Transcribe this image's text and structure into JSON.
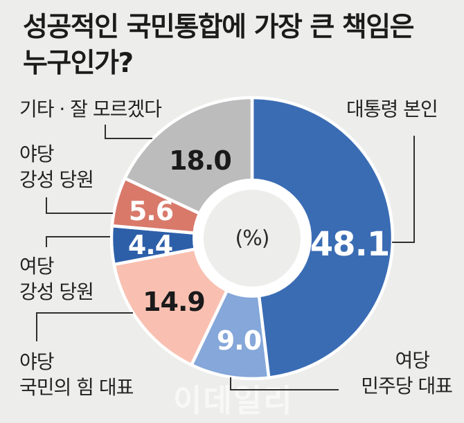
{
  "title": "성공적인 국민통합에 가장 큰 책임은\n누구인가?",
  "center_label": "(%)",
  "watermark": "이데일리",
  "chart_data": {
    "type": "pie",
    "donut": true,
    "title": "성공적인 국민통합에 가장 큰 책임은 누구인가?",
    "unit": "%",
    "start_angle_deg": 0,
    "direction": "clockwise",
    "total": 100.0,
    "segments": [
      {
        "key": "president",
        "label": "대통령 본인",
        "value": 48.1,
        "value_label": "48.1",
        "color": "#3a6cb4",
        "value_color": "#ffffff"
      },
      {
        "key": "ruling-party-leader",
        "label": "여당 민주당 대표",
        "value": 9.0,
        "value_label": "9.0",
        "color": "#85a7d9",
        "value_color": "#ffffff"
      },
      {
        "key": "opposition-party-leader",
        "label": "야당 국민의 힘 대표",
        "value": 14.9,
        "value_label": "14.9",
        "color": "#f9c0b1",
        "value_color": "#1a1a1a"
      },
      {
        "key": "ruling-hardline-members",
        "label": "여당 강성 당원",
        "value": 4.4,
        "value_label": "4.4",
        "color": "#2d5fa9",
        "value_color": "#ffffff"
      },
      {
        "key": "opposition-hardline-members",
        "label": "야당 강성 당원",
        "value": 5.6,
        "value_label": "5.6",
        "color": "#d9796a",
        "value_color": "#ffffff"
      },
      {
        "key": "etc-dont-know",
        "label": "기타 · 잘 모르겠다",
        "value": 18.0,
        "value_label": "18.0",
        "color": "#bcbcbd",
        "value_color": "#1a1a1a"
      }
    ]
  },
  "callouts": {
    "president": {
      "lines": [
        "대통령 본인"
      ]
    },
    "ruling_leader": {
      "lines": [
        "여당",
        "민주당 대표"
      ]
    },
    "opposition_leader": {
      "lines": [
        "야당",
        "국민의 힘 대표"
      ]
    },
    "ruling_hardline": {
      "lines": [
        "여당",
        "강성 당원"
      ]
    },
    "opposition_hardline": {
      "lines": [
        "야당",
        "강성 당원"
      ]
    },
    "etc": {
      "lines": [
        "기타 · 잘 모르겠다"
      ]
    }
  },
  "colors": {
    "background": "#ededeb",
    "line": "#2f2f2f",
    "title_text": "#1b1b1b",
    "label_text": "#222222"
  }
}
